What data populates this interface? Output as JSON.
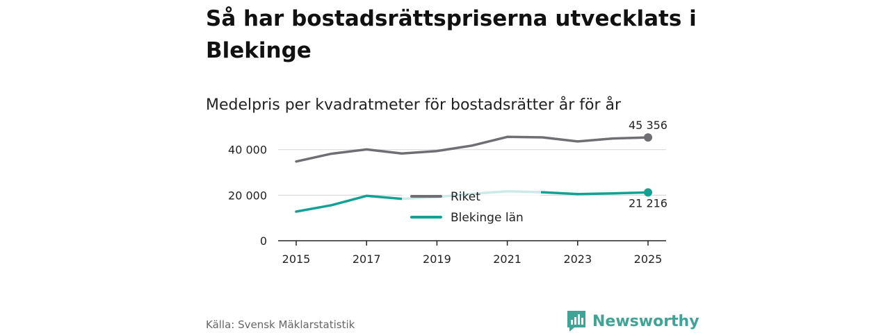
{
  "header": {
    "title": "Så har bostadsrättspriserna utvecklats i Blekinge",
    "subtitle": "Medelpris per kvadratmeter för bostadsrätter år för år"
  },
  "footer": {
    "source": "Källa: Svensk Mäklarstatistik",
    "brand": "Newsworthy"
  },
  "colors": {
    "riket": "#6f6f73",
    "blekinge": "#12a195",
    "grid": "#d9d9d9",
    "axis": "#222222",
    "brand": "#3fa396"
  },
  "chart_data": {
    "type": "line",
    "x": [
      2015,
      2016,
      2017,
      2018,
      2019,
      2020,
      2021,
      2022,
      2023,
      2024,
      2025
    ],
    "xticks": [
      2015,
      2017,
      2019,
      2021,
      2023,
      2025
    ],
    "yticks": [
      0,
      20000,
      40000
    ],
    "ytick_labels": [
      "0",
      "20 000",
      "40 000"
    ],
    "ylim": [
      0,
      46000
    ],
    "xlim": [
      2015,
      2025
    ],
    "grid": true,
    "legend_position": "center",
    "series": [
      {
        "name": "Riket",
        "color": "#6f6f73",
        "values": [
          34800,
          38200,
          40100,
          38300,
          39400,
          41800,
          45600,
          45400,
          43600,
          44900,
          45356
        ],
        "end_label": "45 356"
      },
      {
        "name": "Blekinge län",
        "color": "#12a195",
        "values": [
          12800,
          15600,
          19700,
          18400,
          19200,
          20600,
          21700,
          21300,
          20500,
          20800,
          21216
        ],
        "end_label": "21 216"
      }
    ]
  }
}
